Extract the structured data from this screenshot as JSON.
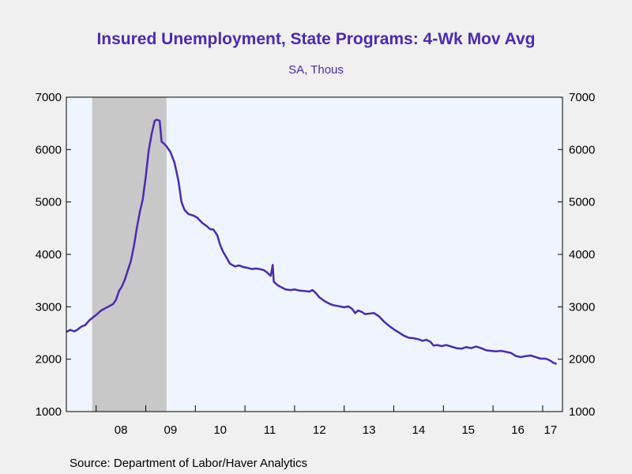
{
  "chart_data": {
    "type": "line",
    "title": "Insured Unemployment, State Programs: 4-Wk Mov Avg",
    "subtitle": "SA, Thous",
    "source": "Source:  Department of Labor/Haver Analytics",
    "xlabel": "",
    "ylabel": "",
    "ylim": [
      1000,
      7000
    ],
    "xlim": [
      2007.4,
      2017.4
    ],
    "y_ticks": [
      1000,
      2000,
      3000,
      4000,
      5000,
      6000,
      7000
    ],
    "y_tick_labels": [
      "1000",
      "2000",
      "3000",
      "4000",
      "5000",
      "6000",
      "7000"
    ],
    "x_tick_labels": [
      {
        "x": 2008.0,
        "label": "08"
      },
      {
        "x": 2009.0,
        "label": "09"
      },
      {
        "x": 2010.0,
        "label": "10"
      },
      {
        "x": 2011.0,
        "label": "11"
      },
      {
        "x": 2012.0,
        "label": "12"
      },
      {
        "x": 2013.0,
        "label": "13"
      },
      {
        "x": 2014.0,
        "label": "14"
      },
      {
        "x": 2015.0,
        "label": "15"
      },
      {
        "x": 2016.0,
        "label": "16"
      },
      {
        "x": 2017.0,
        "label": "17"
      }
    ],
    "recession_shading": [
      {
        "start": 2007.92,
        "end": 2009.42
      }
    ],
    "series": [
      {
        "color": "#4b2ab3",
        "points": [
          [
            2007.4,
            2520
          ],
          [
            2007.48,
            2560
          ],
          [
            2007.56,
            2530
          ],
          [
            2007.62,
            2560
          ],
          [
            2007.7,
            2620
          ],
          [
            2007.78,
            2650
          ],
          [
            2007.86,
            2740
          ],
          [
            2007.94,
            2800
          ],
          [
            2008.02,
            2860
          ],
          [
            2008.1,
            2930
          ],
          [
            2008.18,
            2970
          ],
          [
            2008.26,
            3010
          ],
          [
            2008.34,
            3050
          ],
          [
            2008.4,
            3130
          ],
          [
            2008.46,
            3300
          ],
          [
            2008.52,
            3390
          ],
          [
            2008.58,
            3520
          ],
          [
            2008.64,
            3700
          ],
          [
            2008.7,
            3870
          ],
          [
            2008.76,
            4150
          ],
          [
            2008.82,
            4500
          ],
          [
            2008.88,
            4800
          ],
          [
            2008.94,
            5050
          ],
          [
            2009.0,
            5480
          ],
          [
            2009.06,
            5980
          ],
          [
            2009.12,
            6300
          ],
          [
            2009.18,
            6550
          ],
          [
            2009.22,
            6570
          ],
          [
            2009.28,
            6550
          ],
          [
            2009.32,
            6150
          ],
          [
            2009.36,
            6120
          ],
          [
            2009.42,
            6060
          ],
          [
            2009.5,
            5950
          ],
          [
            2009.58,
            5750
          ],
          [
            2009.66,
            5400
          ],
          [
            2009.72,
            5000
          ],
          [
            2009.78,
            4850
          ],
          [
            2009.86,
            4770
          ],
          [
            2009.96,
            4740
          ],
          [
            2010.04,
            4700
          ],
          [
            2010.14,
            4600
          ],
          [
            2010.24,
            4530
          ],
          [
            2010.3,
            4480
          ],
          [
            2010.36,
            4480
          ],
          [
            2010.44,
            4370
          ],
          [
            2010.5,
            4180
          ],
          [
            2010.56,
            4050
          ],
          [
            2010.62,
            3950
          ],
          [
            2010.7,
            3820
          ],
          [
            2010.8,
            3770
          ],
          [
            2010.88,
            3790
          ],
          [
            2010.96,
            3760
          ],
          [
            2011.06,
            3740
          ],
          [
            2011.14,
            3720
          ],
          [
            2011.22,
            3730
          ],
          [
            2011.3,
            3720
          ],
          [
            2011.38,
            3700
          ],
          [
            2011.44,
            3660
          ],
          [
            2011.52,
            3590
          ],
          [
            2011.56,
            3800
          ],
          [
            2011.58,
            3480
          ],
          [
            2011.66,
            3410
          ],
          [
            2011.74,
            3370
          ],
          [
            2011.82,
            3330
          ],
          [
            2011.92,
            3320
          ],
          [
            2012.0,
            3330
          ],
          [
            2012.1,
            3310
          ],
          [
            2012.2,
            3300
          ],
          [
            2012.3,
            3290
          ],
          [
            2012.36,
            3320
          ],
          [
            2012.42,
            3270
          ],
          [
            2012.5,
            3180
          ],
          [
            2012.6,
            3110
          ],
          [
            2012.7,
            3060
          ],
          [
            2012.78,
            3030
          ],
          [
            2012.9,
            3010
          ],
          [
            2013.0,
            2990
          ],
          [
            2013.08,
            3010
          ],
          [
            2013.16,
            2960
          ],
          [
            2013.22,
            2880
          ],
          [
            2013.28,
            2930
          ],
          [
            2013.36,
            2900
          ],
          [
            2013.42,
            2860
          ],
          [
            2013.5,
            2870
          ],
          [
            2013.6,
            2880
          ],
          [
            2013.7,
            2820
          ],
          [
            2013.8,
            2720
          ],
          [
            2013.9,
            2640
          ],
          [
            2014.0,
            2570
          ],
          [
            2014.1,
            2510
          ],
          [
            2014.2,
            2450
          ],
          [
            2014.3,
            2410
          ],
          [
            2014.4,
            2400
          ],
          [
            2014.5,
            2380
          ],
          [
            2014.58,
            2350
          ],
          [
            2014.66,
            2370
          ],
          [
            2014.74,
            2330
          ],
          [
            2014.8,
            2260
          ],
          [
            2014.88,
            2270
          ],
          [
            2014.96,
            2250
          ],
          [
            2015.06,
            2270
          ],
          [
            2015.16,
            2240
          ],
          [
            2015.26,
            2210
          ],
          [
            2015.36,
            2200
          ],
          [
            2015.46,
            2230
          ],
          [
            2015.56,
            2210
          ],
          [
            2015.66,
            2240
          ],
          [
            2015.76,
            2210
          ],
          [
            2015.86,
            2170
          ],
          [
            2015.96,
            2160
          ],
          [
            2016.06,
            2150
          ],
          [
            2016.16,
            2160
          ],
          [
            2016.26,
            2140
          ],
          [
            2016.36,
            2120
          ],
          [
            2016.46,
            2060
          ],
          [
            2016.56,
            2040
          ],
          [
            2016.66,
            2060
          ],
          [
            2016.76,
            2070
          ],
          [
            2016.86,
            2040
          ],
          [
            2016.96,
            2010
          ],
          [
            2017.06,
            2010
          ],
          [
            2017.14,
            1980
          ],
          [
            2017.22,
            1930
          ],
          [
            2017.28,
            1910
          ]
        ]
      }
    ]
  }
}
